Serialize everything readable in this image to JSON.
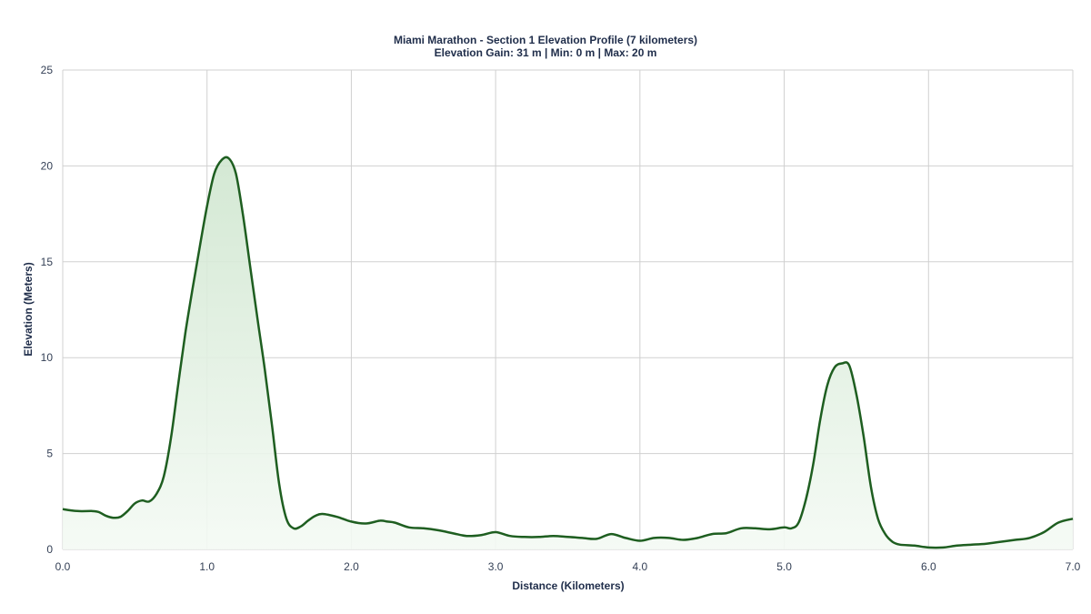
{
  "chart_data": {
    "type": "area",
    "title": "Miami Marathon - Section 1 Elevation Profile (7 kilometers)",
    "subtitle": "Elevation Gain: 31 m | Min: 0 m | Max: 20 m",
    "xlabel": "Distance (Kilometers)",
    "ylabel": "Elevation (Meters)",
    "xlim": [
      0,
      7
    ],
    "ylim": [
      0,
      25
    ],
    "x_ticks": [
      0,
      1,
      2,
      3,
      4,
      5,
      6,
      7
    ],
    "x_tick_labels": [
      "0.0",
      "1.0",
      "2.0",
      "3.0",
      "4.0",
      "5.0",
      "6.0",
      "7.0"
    ],
    "y_ticks": [
      0,
      5,
      10,
      15,
      20,
      25
    ],
    "y_tick_labels": [
      "0",
      "5",
      "10",
      "15",
      "20",
      "25"
    ],
    "grid": true,
    "colors": {
      "line": "#1e5e20",
      "fill_top": "#cfe6cf",
      "fill_bottom": "#f4faf4",
      "grid": "#d0d0d0",
      "text": "#1f2d4a"
    },
    "series": [
      {
        "x": [
          0.0,
          0.1,
          0.2,
          0.25,
          0.3,
          0.35,
          0.4,
          0.45,
          0.5,
          0.55,
          0.6,
          0.65,
          0.7,
          0.75,
          0.8,
          0.85,
          0.9,
          0.95,
          1.0,
          1.05,
          1.1,
          1.15,
          1.2,
          1.25,
          1.3,
          1.35,
          1.4,
          1.45,
          1.5,
          1.55,
          1.6,
          1.65,
          1.7,
          1.75,
          1.8,
          1.9,
          2.0,
          2.1,
          2.2,
          2.25,
          2.3,
          2.4,
          2.5,
          2.6,
          2.7,
          2.8,
          2.9,
          3.0,
          3.1,
          3.2,
          3.3,
          3.4,
          3.5,
          3.6,
          3.7,
          3.8,
          3.9,
          4.0,
          4.1,
          4.2,
          4.3,
          4.4,
          4.5,
          4.6,
          4.7,
          4.8,
          4.9,
          5.0,
          5.05,
          5.1,
          5.15,
          5.2,
          5.25,
          5.3,
          5.35,
          5.4,
          5.45,
          5.5,
          5.55,
          5.6,
          5.65,
          5.7,
          5.75,
          5.8,
          5.9,
          6.0,
          6.1,
          6.2,
          6.3,
          6.4,
          6.5,
          6.6,
          6.7,
          6.8,
          6.9,
          7.0
        ],
        "values": [
          2.1,
          2.0,
          2.0,
          1.95,
          1.75,
          1.65,
          1.7,
          2.0,
          2.4,
          2.55,
          2.5,
          2.9,
          3.8,
          5.8,
          8.6,
          11.3,
          13.6,
          15.8,
          17.9,
          19.6,
          20.3,
          20.4,
          19.6,
          17.4,
          14.7,
          12.0,
          9.4,
          6.5,
          3.4,
          1.6,
          1.1,
          1.2,
          1.5,
          1.75,
          1.85,
          1.7,
          1.45,
          1.35,
          1.5,
          1.45,
          1.4,
          1.15,
          1.1,
          1.0,
          0.85,
          0.7,
          0.75,
          0.9,
          0.7,
          0.65,
          0.65,
          0.7,
          0.65,
          0.6,
          0.55,
          0.8,
          0.6,
          0.45,
          0.6,
          0.6,
          0.5,
          0.6,
          0.8,
          0.85,
          1.1,
          1.1,
          1.05,
          1.15,
          1.1,
          1.4,
          2.6,
          4.4,
          6.8,
          8.6,
          9.5,
          9.7,
          9.6,
          8.1,
          5.9,
          3.3,
          1.6,
          0.8,
          0.4,
          0.25,
          0.2,
          0.1,
          0.1,
          0.2,
          0.25,
          0.3,
          0.4,
          0.5,
          0.6,
          0.9,
          1.4,
          1.6
        ]
      }
    ]
  }
}
